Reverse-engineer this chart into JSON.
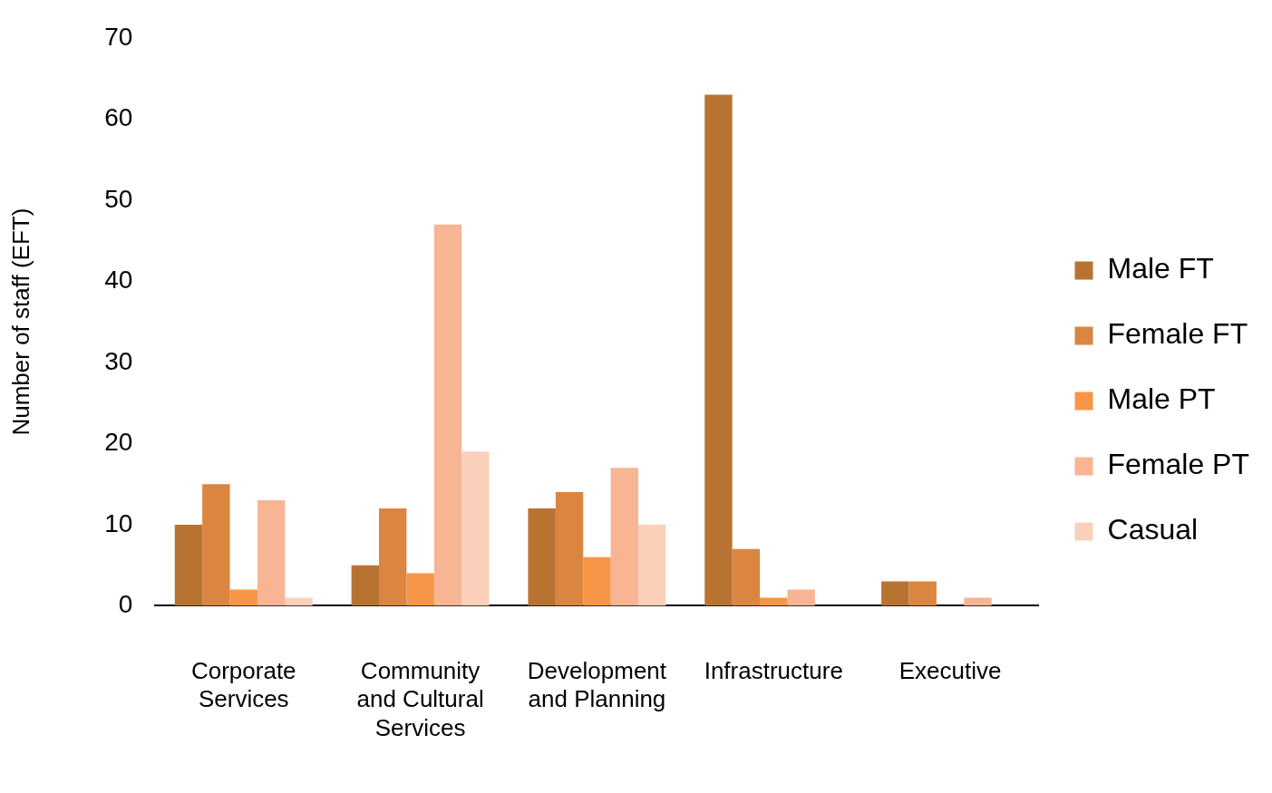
{
  "chart_data": {
    "type": "bar",
    "ylabel": "Number of staff (EFT)",
    "categories": [
      "Corporate Services",
      "Community and Cultural Services",
      "Development and Planning",
      "Infrastructure",
      "Executive"
    ],
    "series": [
      {
        "name": "Male FT",
        "color": "#b87333",
        "values": [
          10,
          5,
          12,
          63,
          3
        ]
      },
      {
        "name": "Female FT",
        "color": "#da8640",
        "values": [
          15,
          12,
          14,
          7,
          3
        ]
      },
      {
        "name": "Male PT",
        "color": "#f79646",
        "values": [
          2,
          4,
          6,
          1,
          0
        ]
      },
      {
        "name": "Female PT",
        "color": "#f8b593",
        "values": [
          13,
          47,
          17,
          2,
          1
        ]
      },
      {
        "name": "Casual",
        "color": "#fbd0ba",
        "values": [
          1,
          19,
          10,
          0,
          0
        ]
      }
    ],
    "ylim": [
      0,
      70
    ],
    "yticks": [
      0,
      10,
      20,
      30,
      40,
      50,
      60,
      70
    ],
    "grid": false,
    "legend": "right"
  }
}
